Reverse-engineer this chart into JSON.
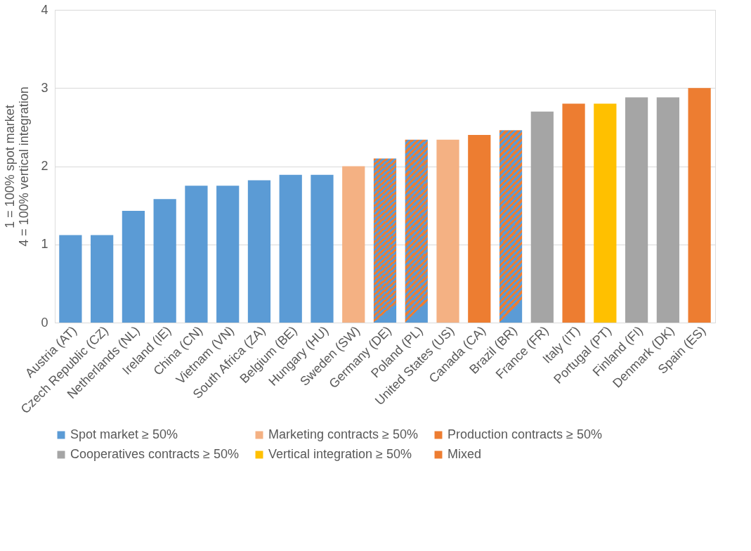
{
  "chart_data": {
    "type": "bar",
    "ylabel": "1 = 100% spot market\n4 = 100% vertical integration",
    "categories": [
      "Austria (AT)",
      "Czech Republic (CZ)",
      "Netherlands (NL)",
      "Ireland (IE)",
      "China (CN)",
      "Vietnam (VN)",
      "South Africa (ZA)",
      "Belgium (BE)",
      "Hungary (HU)",
      "Sweden (SW)",
      "Germany (DE)",
      "Poland (PL)",
      "United States (US)",
      "Canada (CA)",
      "Brazil (BR)",
      "France (FR)",
      "Italy (IT)",
      "Portugal (PT)",
      "Finland (FI)",
      "Denmark (DK)",
      "Spain (ES)"
    ],
    "series": [
      {
        "name": "Spot market ≥ 50%",
        "color": "#5b9bd5",
        "values": [
          1.12,
          1.12,
          1.43,
          1.58,
          1.75,
          1.75,
          1.82,
          1.89,
          1.89,
          null,
          null,
          null,
          null,
          null,
          null,
          null,
          null,
          null,
          null,
          null,
          null
        ]
      },
      {
        "name": "Marketing contracts ≥ 50%",
        "color": "#f4b183",
        "values": [
          null,
          null,
          null,
          null,
          null,
          null,
          null,
          null,
          null,
          2.0,
          null,
          null,
          2.34,
          null,
          null,
          null,
          null,
          null,
          null,
          null,
          null
        ]
      },
      {
        "name": "Production contracts ≥ 50%",
        "color": "#ed7d31",
        "values": [
          null,
          null,
          null,
          null,
          null,
          null,
          null,
          null,
          null,
          null,
          null,
          null,
          null,
          2.4,
          null,
          null,
          2.8,
          null,
          null,
          null,
          3.0
        ]
      },
      {
        "name": "Cooperatives contracts ≥ 50%",
        "color": "#a5a5a5",
        "values": [
          null,
          null,
          null,
          null,
          null,
          null,
          null,
          null,
          null,
          null,
          null,
          null,
          null,
          null,
          null,
          2.7,
          null,
          null,
          2.88,
          2.88,
          null
        ]
      },
      {
        "name": "Vertical integration ≥ 50%",
        "color": "#ffc000",
        "values": [
          null,
          null,
          null,
          null,
          null,
          null,
          null,
          null,
          null,
          null,
          null,
          null,
          null,
          null,
          null,
          null,
          null,
          2.8,
          null,
          null,
          null
        ]
      },
      {
        "name": "Mixed",
        "color": "#ed7d31",
        "values": [
          null,
          null,
          null,
          null,
          null,
          null,
          null,
          null,
          null,
          null,
          2.1,
          2.34,
          null,
          null,
          2.46,
          null,
          null,
          null,
          null,
          null,
          null
        ]
      }
    ],
    "ylim": [
      0,
      4
    ],
    "yticks": [
      0,
      1,
      2,
      3,
      4
    ],
    "grid": "y",
    "legend": "bottom"
  }
}
